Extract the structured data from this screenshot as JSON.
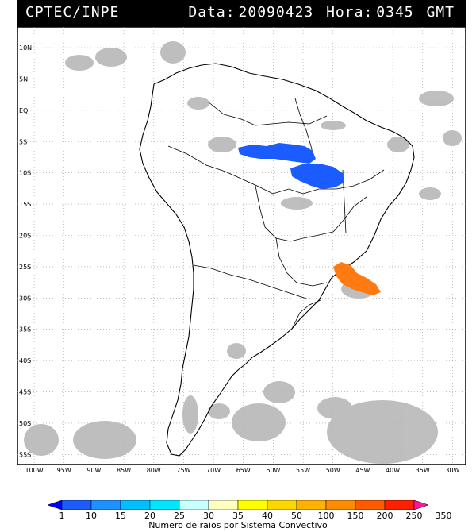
{
  "header": {
    "source": "CPTEC/INPE",
    "date_label": "Data:",
    "date_value": "20090423",
    "time_label": "Hora:",
    "time_value": "0345",
    "timezone": "GMT"
  },
  "map": {
    "lat_labels": [
      "10N",
      "5N",
      "EQ",
      "5S",
      "10S",
      "15S",
      "20S",
      "25S",
      "30S",
      "35S",
      "40S",
      "45S",
      "50S",
      "55S"
    ],
    "lon_labels": [
      "100W",
      "95W",
      "90W",
      "85W",
      "80W",
      "75W",
      "70W",
      "65W",
      "60W",
      "55W",
      "50W",
      "45W",
      "40W",
      "35W",
      "30W"
    ],
    "lat_values": [
      10,
      5,
      0,
      -5,
      -10,
      -15,
      -20,
      -25,
      -30,
      -35,
      -40,
      -45,
      -50,
      -55
    ],
    "lon_values": [
      -100,
      -95,
      -90,
      -85,
      -80,
      -75,
      -70,
      -65,
      -60,
      -55,
      -50,
      -45,
      -40,
      -35,
      -30
    ],
    "features": {
      "continent": "south-america-outline",
      "convective_systems": [
        {
          "name": "amazon-system-north",
          "color": "#1a5cff"
        },
        {
          "name": "amazon-system-south",
          "color": "#1a5cff"
        },
        {
          "name": "south-atlantic-system",
          "color": "#ff7a10"
        }
      ]
    }
  },
  "colorbar": {
    "title": "Numero de raios por Sistema Convectivo",
    "labels": [
      "1",
      "10",
      "15",
      "20",
      "25",
      "30",
      "35",
      "40",
      "50",
      "100",
      "150",
      "200",
      "250",
      "350"
    ],
    "colors": [
      "#0000ff",
      "#1a5cff",
      "#1e90ff",
      "#00bfff",
      "#00e6ff",
      "#c8ffff",
      "#ffffc0",
      "#ffff00",
      "#ffd700",
      "#ffb000",
      "#ff8c00",
      "#ff5a00",
      "#ff2000",
      "#ff1493"
    ]
  }
}
